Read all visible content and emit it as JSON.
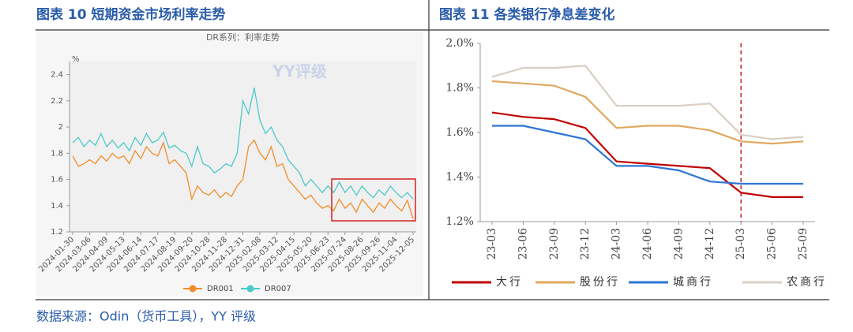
{
  "header_left": "图表 10 短期资金市场利率走势",
  "header_right": "图表 11 各类银行净息差变化",
  "source": "数据来源：Odin（货币工具），YY 评级",
  "chart_data": [
    {
      "type": "line",
      "title": "DR系列：利率走势",
      "y_unit": "%",
      "watermark": "YY评级",
      "categories": [
        "2024-01-30",
        null,
        null,
        "2024-03-06",
        null,
        null,
        "2024-04-09",
        null,
        null,
        "2024-05-13",
        null,
        null,
        "2024-06-14",
        null,
        null,
        "2024-07-17",
        null,
        null,
        "2024-08-19",
        null,
        null,
        "2024-09-20",
        null,
        null,
        "2024-10-28",
        null,
        null,
        "2024-11-28",
        null,
        null,
        "2024-12-31",
        null,
        null,
        "2025-02-08",
        null,
        null,
        "2025-03-12",
        null,
        null,
        "2025-04-15",
        null,
        null,
        "2025-05-20",
        null,
        null,
        "2025-06-23",
        null,
        null,
        "2025-07-24",
        null,
        null,
        "2025-08-26",
        null,
        null,
        "2025-09-26",
        null,
        null,
        "2025-11-04",
        null,
        null,
        "2025-12-05"
      ],
      "series": [
        {
          "name": "DR001",
          "color": "#f28c28",
          "values": [
            1.78,
            1.7,
            1.72,
            1.75,
            1.72,
            1.78,
            1.74,
            1.8,
            1.76,
            1.78,
            1.72,
            1.82,
            1.76,
            1.85,
            1.8,
            1.78,
            1.88,
            1.72,
            1.75,
            1.7,
            1.65,
            1.45,
            1.55,
            1.5,
            1.48,
            1.52,
            1.46,
            1.5,
            1.47,
            1.55,
            1.6,
            1.85,
            1.9,
            1.8,
            1.75,
            1.85,
            1.7,
            1.72,
            1.6,
            1.55,
            1.5,
            1.45,
            1.48,
            1.42,
            1.38,
            1.4,
            1.36,
            1.45,
            1.38,
            1.42,
            1.35,
            1.45,
            1.4,
            1.35,
            1.42,
            1.38,
            1.45,
            1.4,
            1.36,
            1.44,
            1.3
          ]
        },
        {
          "name": "DR007",
          "color": "#4cc9c9",
          "values": [
            1.88,
            1.92,
            1.85,
            1.9,
            1.86,
            1.95,
            1.85,
            1.9,
            1.84,
            1.88,
            1.82,
            1.92,
            1.86,
            1.95,
            1.88,
            1.9,
            1.96,
            1.84,
            1.86,
            1.82,
            1.8,
            1.7,
            1.85,
            1.72,
            1.7,
            1.65,
            1.68,
            1.72,
            1.7,
            1.8,
            2.2,
            2.1,
            2.3,
            2.05,
            1.95,
            2.0,
            1.9,
            1.85,
            1.75,
            1.7,
            1.65,
            1.55,
            1.6,
            1.55,
            1.5,
            1.55,
            1.5,
            1.58,
            1.5,
            1.55,
            1.48,
            1.55,
            1.5,
            1.46,
            1.52,
            1.48,
            1.55,
            1.5,
            1.46,
            1.5,
            1.45
          ]
        }
      ],
      "ylim": [
        1.2,
        2.5
      ],
      "yticks": [
        1.2,
        1.4,
        1.6,
        1.8,
        2,
        2.2,
        2.4
      ],
      "grid": false,
      "legend": "bottom"
    },
    {
      "type": "line",
      "categories": [
        "23-03",
        "23-06",
        "23-09",
        "23-12",
        "24-03",
        "24-06",
        "24-09",
        "24-12",
        "25-03",
        "25-06",
        "25-09"
      ],
      "series": [
        {
          "name": "大行",
          "color": "#c00000",
          "values": [
            1.69,
            1.67,
            1.66,
            1.62,
            1.47,
            1.46,
            1.45,
            1.44,
            1.33,
            1.31,
            1.31
          ]
        },
        {
          "name": "股份行",
          "color": "#e0a860",
          "values": [
            1.83,
            1.82,
            1.81,
            1.76,
            1.62,
            1.63,
            1.63,
            1.61,
            1.56,
            1.55,
            1.56
          ]
        },
        {
          "name": "城商行",
          "color": "#2e75d6",
          "values": [
            1.63,
            1.63,
            1.6,
            1.57,
            1.45,
            1.45,
            1.43,
            1.38,
            1.37,
            1.37,
            1.37
          ]
        },
        {
          "name": "农商行",
          "color": "#d9cfc4",
          "values": [
            1.85,
            1.89,
            1.89,
            1.9,
            1.72,
            1.72,
            1.72,
            1.73,
            1.59,
            1.57,
            1.58
          ]
        }
      ],
      "ylim": [
        1.2,
        2.0
      ],
      "yticks": [
        {
          "value": 1.2,
          "label": "1.2%"
        },
        {
          "value": 1.4,
          "label": "1.4%"
        },
        {
          "value": 1.6,
          "label": "1.6%"
        },
        {
          "value": 1.8,
          "label": "1.8%"
        },
        {
          "value": 2.0,
          "label": "2.0%"
        }
      ],
      "grid": false,
      "legend": "bottom",
      "reference_line": {
        "x": "25-03",
        "color": "#c00000",
        "style": "dashed"
      }
    }
  ]
}
